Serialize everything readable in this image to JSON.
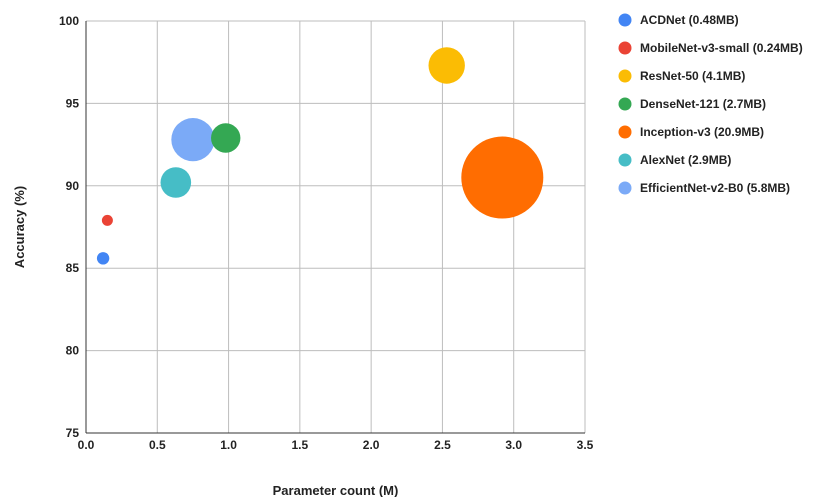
{
  "chart_data": {
    "type": "bubble",
    "xlabel": "Parameter count (M)",
    "ylabel": "Accuracy (%)",
    "xlim": [
      0.0,
      3.5
    ],
    "ylim": [
      75,
      100
    ],
    "xticks": [
      "0.0",
      "0.5",
      "1.0",
      "1.5",
      "2.0",
      "2.5",
      "3.0",
      "3.5"
    ],
    "yticks": [
      "75",
      "80",
      "85",
      "90",
      "95",
      "100"
    ],
    "grid": true,
    "legend_position": "right",
    "series": [
      {
        "name": "ACDNet (0.48MB)",
        "x": 0.12,
        "y": 85.6,
        "size_mb": 0.48,
        "color": "#4285f4"
      },
      {
        "name": "MobileNet-v3-small (0.24MB)",
        "x": 0.15,
        "y": 87.9,
        "size_mb": 0.24,
        "color": "#ea4335"
      },
      {
        "name": "ResNet-50 (4.1MB)",
        "x": 2.53,
        "y": 97.3,
        "size_mb": 4.1,
        "color": "#fbbc04"
      },
      {
        "name": "DenseNet-121 (2.7MB)",
        "x": 0.98,
        "y": 92.9,
        "size_mb": 2.7,
        "color": "#34a853"
      },
      {
        "name": "Inception-v3 (20.9MB)",
        "x": 2.92,
        "y": 90.5,
        "size_mb": 20.9,
        "color": "#ff6d01"
      },
      {
        "name": "AlexNet (2.9MB)",
        "x": 0.63,
        "y": 90.2,
        "size_mb": 2.9,
        "color": "#46bdc6"
      },
      {
        "name": "EfficientNet-v2-B0 (5.8MB)",
        "x": 0.75,
        "y": 92.8,
        "size_mb": 5.8,
        "color": "#7baaf7"
      }
    ]
  }
}
